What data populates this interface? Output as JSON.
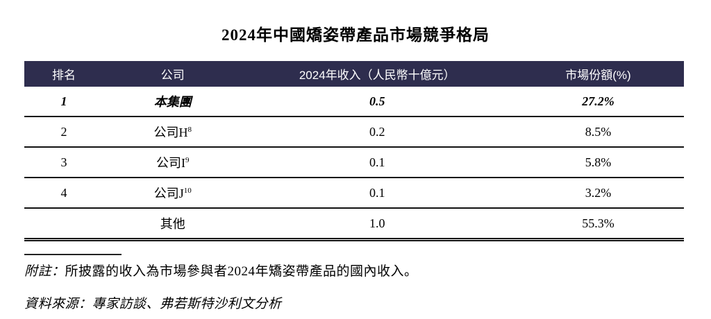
{
  "title": "2024年中國矯姿帶產品市場競爭格局",
  "table": {
    "columns": {
      "rank": "排名",
      "company": "公司",
      "revenue": "2024年收入（人民幣十億元）",
      "share": "市場份額(%)"
    },
    "rows": [
      {
        "rank": "1",
        "company": "本集團",
        "company_sup": "",
        "revenue": "0.5",
        "share": "27.2%"
      },
      {
        "rank": "2",
        "company": "公司H",
        "company_sup": "8",
        "revenue": "0.2",
        "share": "8.5%"
      },
      {
        "rank": "3",
        "company": "公司I",
        "company_sup": "9",
        "revenue": "0.1",
        "share": "5.8%"
      },
      {
        "rank": "4",
        "company": "公司J",
        "company_sup": "10",
        "revenue": "0.1",
        "share": "3.2%"
      },
      {
        "rank": "",
        "company": "其他",
        "company_sup": "",
        "revenue": "1.0",
        "share": "55.3%"
      }
    ]
  },
  "footnotes": {
    "note_label": "附註：",
    "note_text": "所披露的收入為市場參與者2024年矯姿帶產品的國內收入。",
    "source_text": "資料來源：專家訪談、弗若斯特沙利文分析"
  },
  "colors": {
    "header_bg": "#2e2d4e",
    "header_text": "#ffffff",
    "body_text": "#000000"
  }
}
